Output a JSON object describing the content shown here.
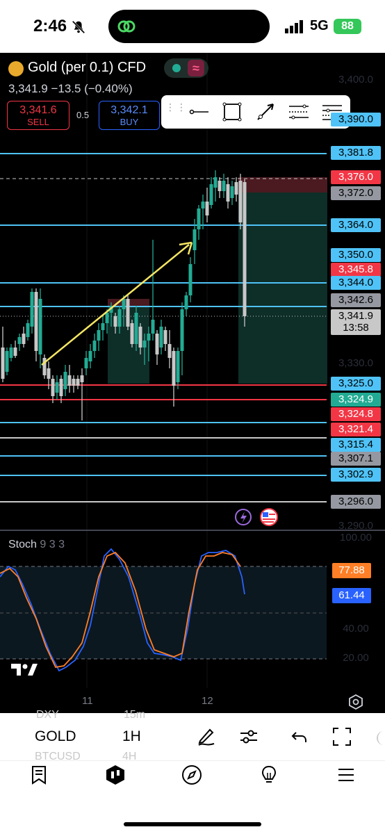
{
  "status_bar": {
    "time": "2:46",
    "network": "5G",
    "battery": "88"
  },
  "symbol": {
    "name": "Gold (per 0.1) CFD",
    "price_line": "3,341.9 −13.5 (−0.40%)",
    "sell_price": "3,341.6",
    "sell_label": "SELL",
    "spread": "0.5",
    "buy_price": "3,342.1",
    "buy_label": "BUY"
  },
  "drawing_tools": [
    "horizontal-ray",
    "rectangle",
    "trend-line",
    "fib-retracement",
    "parallel-channel"
  ],
  "price_axis": {
    "faint": [
      "3,400.0",
      "3,330.0",
      "3,290.0",
      "100.00",
      "40.00",
      "20.00"
    ],
    "labels": [
      {
        "text": "3,390.0",
        "color": "#4fc3f7",
        "style": "hline"
      },
      {
        "text": "3,381.8",
        "color": "#4fc3f7",
        "style": "hline"
      },
      {
        "text": "3,376.0",
        "color": "#f23645",
        "style": "stop"
      },
      {
        "text": "3,372.0",
        "color": "#9598a1",
        "style": "gray"
      },
      {
        "text": "3,364.0",
        "color": "#4fc3f7",
        "style": "hline"
      },
      {
        "text": "3,350.0",
        "color": "#4fc3f7",
        "style": "hline"
      },
      {
        "text": "3,345.8",
        "color": "#f23645",
        "style": "red"
      },
      {
        "text": "3,344.0",
        "color": "#4fc3f7",
        "style": "hline"
      },
      {
        "text": "3,342.6",
        "color": "#9598a1",
        "style": "gray"
      },
      {
        "text": "3,341.9",
        "color": "#c8c8c8",
        "style": "current"
      },
      {
        "text": "13:58",
        "color": "#c8c8c8",
        "style": "countdown"
      },
      {
        "text": "3,325.0",
        "color": "#4fc3f7",
        "style": "hline"
      },
      {
        "text": "3,324.9",
        "color": "#22ab94",
        "style": "green"
      },
      {
        "text": "3,324.8",
        "color": "#f23645",
        "style": "red"
      },
      {
        "text": "3,321.4",
        "color": "#f23645",
        "style": "red"
      },
      {
        "text": "3,315.4",
        "color": "#4fc3f7",
        "style": "hline"
      },
      {
        "text": "3,307.1",
        "color": "#9598a1",
        "style": "gray"
      },
      {
        "text": "3,302.9",
        "color": "#4fc3f7",
        "style": "hline"
      },
      {
        "text": "3,296.0",
        "color": "#9598a1",
        "style": "gray"
      }
    ]
  },
  "stoch": {
    "title": "Stoch",
    "params": "9 3 3",
    "k_value": "77.88",
    "d_value": "61.44",
    "k_color": "#ff7f27",
    "d_color": "#2962ff"
  },
  "x_axis": [
    "11",
    "12"
  ],
  "toolbar": {
    "symbol": "GOLD",
    "timeframe": "1H",
    "ghost_top": [
      "DXY",
      "15m"
    ],
    "ghost_bottom": [
      "BTCUSD",
      "4H"
    ]
  },
  "nav": {
    "items": [
      {
        "label": "Watchlist",
        "icon": "watchlist-icon"
      },
      {
        "label": "Chart",
        "icon": "chart-icon"
      },
      {
        "label": "Explore",
        "icon": "compass-icon"
      },
      {
        "label": "Ideas",
        "icon": "lightbulb-icon"
      },
      {
        "label": "Menu",
        "icon": "menu-icon"
      }
    ]
  },
  "colors": {
    "bull": "#22ab94",
    "bear": "#f23645",
    "level_line": "#4fc3f7",
    "trend_arrow": "#f5e663"
  }
}
